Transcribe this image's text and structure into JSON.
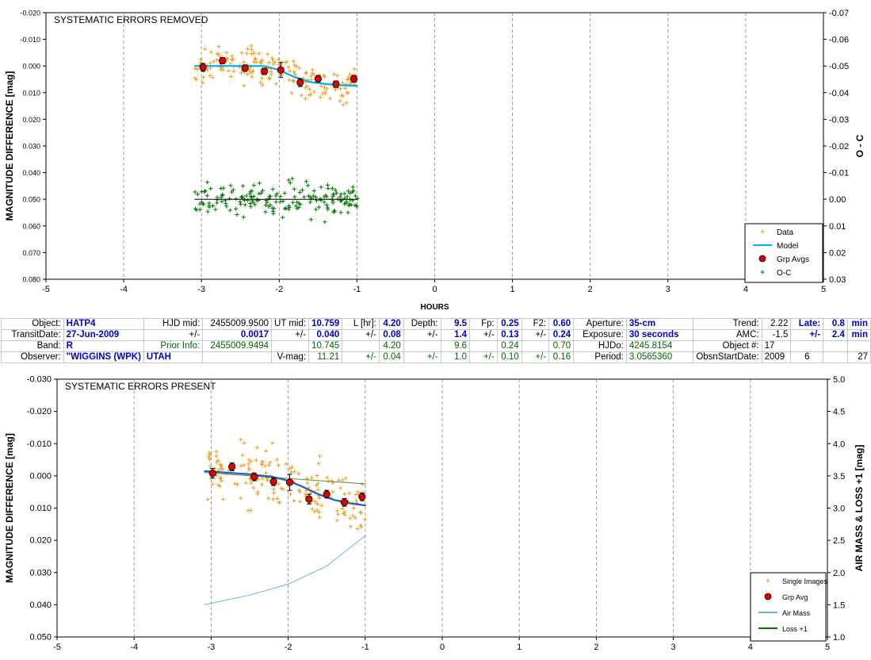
{
  "top_chart": {
    "title": "SYSTEMATIC ERRORS REMOVED",
    "xlabel": "HOURS",
    "ylabel": "MAGNITUDE DIFFERENCE [mag]",
    "y2label": "O - C",
    "legend": [
      {
        "label": "Data",
        "color": "#e8a020",
        "kind": "plus"
      },
      {
        "label": "Model",
        "color": "#00b0f0",
        "kind": "line"
      },
      {
        "label": "Grp Avgs",
        "color": "#dd0000",
        "kind": "dot"
      },
      {
        "label": "O-C",
        "color": "#007700",
        "kind": "plus"
      }
    ]
  },
  "bottom_chart": {
    "title": "SYSTEMATIC ERRORS PRESENT",
    "ylabel": "MAGNITUDE DIFFERENCE [mag]",
    "y2label": "AIR MASS & LOSS +1 [mag]",
    "legend": [
      {
        "label": "Single Images",
        "color": "#e8a020",
        "kind": "plus"
      },
      {
        "label": "Grp Avg",
        "color": "#dd0000",
        "kind": "dot"
      },
      {
        "label": "Air Mass",
        "color": "#6ab0e8",
        "kind": "line"
      },
      {
        "label": "Loss +1",
        "color": "#007700",
        "kind": "line"
      }
    ]
  },
  "table": {
    "r1": {
      "object_lbl": "Object:",
      "object": "HATP4",
      "hjd_lbl": "HJD mid:",
      "hjd": "2455009.9500",
      "ut_lbl": "UT mid:",
      "ut": "10.759",
      "l_lbl": "L [hr]:",
      "l": "4.20",
      "depth_lbl": "Depth:",
      "depth": "9.5",
      "fp_lbl": "Fp:",
      "fp": "0.25",
      "f2_lbl": "F2:",
      "f2": "0.60",
      "ap_lbl": "Aperture:",
      "ap": "35-cm",
      "trend_lbl": "Trend:",
      "trend": "2.22",
      "late_lbl": "Late:",
      "late": "0.8",
      "late_unit": "min"
    },
    "r2": {
      "tdate_lbl": "TransitDate:",
      "tdate": "27-Jun-2009",
      "pm": "+/-",
      "hjd_err": "0.0017",
      "ut_err": "0.040",
      "l_err": "0.08",
      "depth_err": "1.4",
      "fp_err": "0.13",
      "f2_err": "0.24",
      "exp_lbl": "Exposure:",
      "exp": "30 seconds",
      "amc_lbl": "AMC:",
      "amc": "-1.5",
      "amc_err": "2.4",
      "amc_unit": "min"
    },
    "r3": {
      "band_lbl": "Band:",
      "band": "R",
      "prior_lbl": "Prior Info:",
      "prior_hjd": "2455009.9494",
      "prior_ut": "10.745",
      "prior_l": "4.20",
      "prior_depth": "9.6",
      "prior_fp": "0.24",
      "prior_f2": "0.70",
      "hjdo_lbl": "HJDo:",
      "hjdo": "4245.8154",
      "objn_lbl": "Object #:",
      "objn": "17"
    },
    "r4": {
      "obs_lbl": "Observer:",
      "obs": "\"WIGGINS (WPK)",
      "loc": "UTAH",
      "vmag_lbl": "V-mag:",
      "vmag": "11.21",
      "vmag_err": "0.04",
      "depth_err": "1.0",
      "fp_err": "0.10",
      "f2_err": "0.16",
      "period_lbl": "Period:",
      "period": "3.0565360",
      "osd_lbl": "ObsnStartDate:",
      "y": "2009",
      "m": "6",
      "d": "27"
    }
  },
  "chart_data": [
    {
      "type": "scatter",
      "title": "SYSTEMATIC ERRORS REMOVED",
      "xlabel": "HOURS",
      "ylabel": "MAGNITUDE DIFFERENCE [mag]",
      "y2label": "O - C",
      "xlim": [
        -5,
        5
      ],
      "ylim": [
        0.08,
        -0.02
      ],
      "y2lim": [
        0.03,
        -0.07
      ],
      "xticks": [
        -5,
        -4,
        -3,
        -2,
        -1,
        0,
        1,
        2,
        3,
        4,
        5
      ],
      "yticks": [
        "-0.020",
        "-0.010",
        "0.000",
        "0.010",
        "0.020",
        "0.030",
        "0.040",
        "0.050",
        "0.060",
        "0.070",
        "0.080"
      ],
      "y2ticks": [
        "-0.07",
        "-0.06",
        "-0.05",
        "-0.04",
        "-0.03",
        "-0.02",
        "-0.01",
        "0.00",
        "0.01",
        "0.02",
        "0.03"
      ],
      "grid": true,
      "legend_position": "bottom-right",
      "data_range_x": [
        -3.09,
        -0.99
      ],
      "data_y_center": 0.003,
      "data_y_spread": 0.007,
      "oc_y_center": 0.05,
      "oc_y_spread": 0.006,
      "grp_avgs": {
        "x": [
          -2.98,
          -2.73,
          -2.44,
          -2.19,
          -1.98,
          -1.73,
          -1.5,
          -1.27,
          -1.04
        ],
        "y": [
          0.0005,
          -0.002,
          0.0008,
          0.002,
          0.0015,
          0.0062,
          0.0048,
          0.0068,
          0.0048
        ],
        "err": [
          0.0015,
          0.0012,
          0.0012,
          0.0012,
          0.0028,
          0.0015,
          0.0012,
          0.0012,
          0.0012
        ]
      },
      "model": {
        "x": [
          -3.09,
          -2.2,
          -2.0,
          -1.8,
          -1.6,
          -1.4,
          -1.2,
          -0.99
        ],
        "y": [
          0.0,
          0.0,
          0.0015,
          0.0042,
          0.006,
          0.0068,
          0.0072,
          0.0075
        ]
      },
      "oc_line": {
        "x": [
          -3.09,
          -0.99
        ],
        "y": [
          0.05,
          0.05
        ]
      }
    },
    {
      "type": "scatter",
      "title": "SYSTEMATIC ERRORS PRESENT",
      "ylabel": "MAGNITUDE DIFFERENCE [mag]",
      "y2label": "AIR MASS & LOSS +1 [mag]",
      "xlim": [
        -5,
        5
      ],
      "ylim": [
        0.05,
        -0.03
      ],
      "y2lim": [
        1.0,
        5.0
      ],
      "xticks": [
        -5,
        -4,
        -3,
        -2,
        -1,
        0,
        1,
        2,
        3,
        4,
        5
      ],
      "yticks": [
        "-0.030",
        "-0.020",
        "-0.010",
        "0.000",
        "0.010",
        "0.020",
        "0.030",
        "0.040",
        "0.050"
      ],
      "y2ticks": [
        "1.0",
        "1.5",
        "2.0",
        "2.5",
        "3.0",
        "3.5",
        "4.0",
        "4.5",
        "5.0"
      ],
      "grid": true,
      "legend_position": "bottom-right",
      "data_range_x": [
        -3.09,
        -0.99
      ],
      "data_y_center": 0.005,
      "data_y_spread": 0.009,
      "grp_avgs": {
        "x": [
          -2.98,
          -2.73,
          -2.44,
          -2.19,
          -1.98,
          -1.73,
          -1.5,
          -1.27,
          -1.04
        ],
        "y": [
          -0.0008,
          -0.0028,
          0.0003,
          0.0018,
          0.002,
          0.0072,
          0.0057,
          0.0082,
          0.0065
        ],
        "err": [
          0.0015,
          0.0012,
          0.0012,
          0.0012,
          0.0025,
          0.0015,
          0.0012,
          0.0012,
          0.0012
        ]
      },
      "model": {
        "x": [
          -3.09,
          -2.5,
          -2.2,
          -2.0,
          -1.8,
          -1.6,
          -1.4,
          -1.2,
          -0.99
        ],
        "y": [
          -0.0015,
          -0.0005,
          0.0003,
          0.0015,
          0.0035,
          0.0058,
          0.0075,
          0.0085,
          0.0092
        ]
      },
      "loss": {
        "x": [
          -3.09,
          -0.99
        ],
        "y": [
          -0.001,
          0.0025
        ]
      },
      "airmass": {
        "x": [
          -3.09,
          -2.5,
          -2.0,
          -1.5,
          -0.99
        ],
        "y": [
          1.5,
          1.65,
          1.82,
          2.1,
          2.58
        ]
      }
    }
  ]
}
